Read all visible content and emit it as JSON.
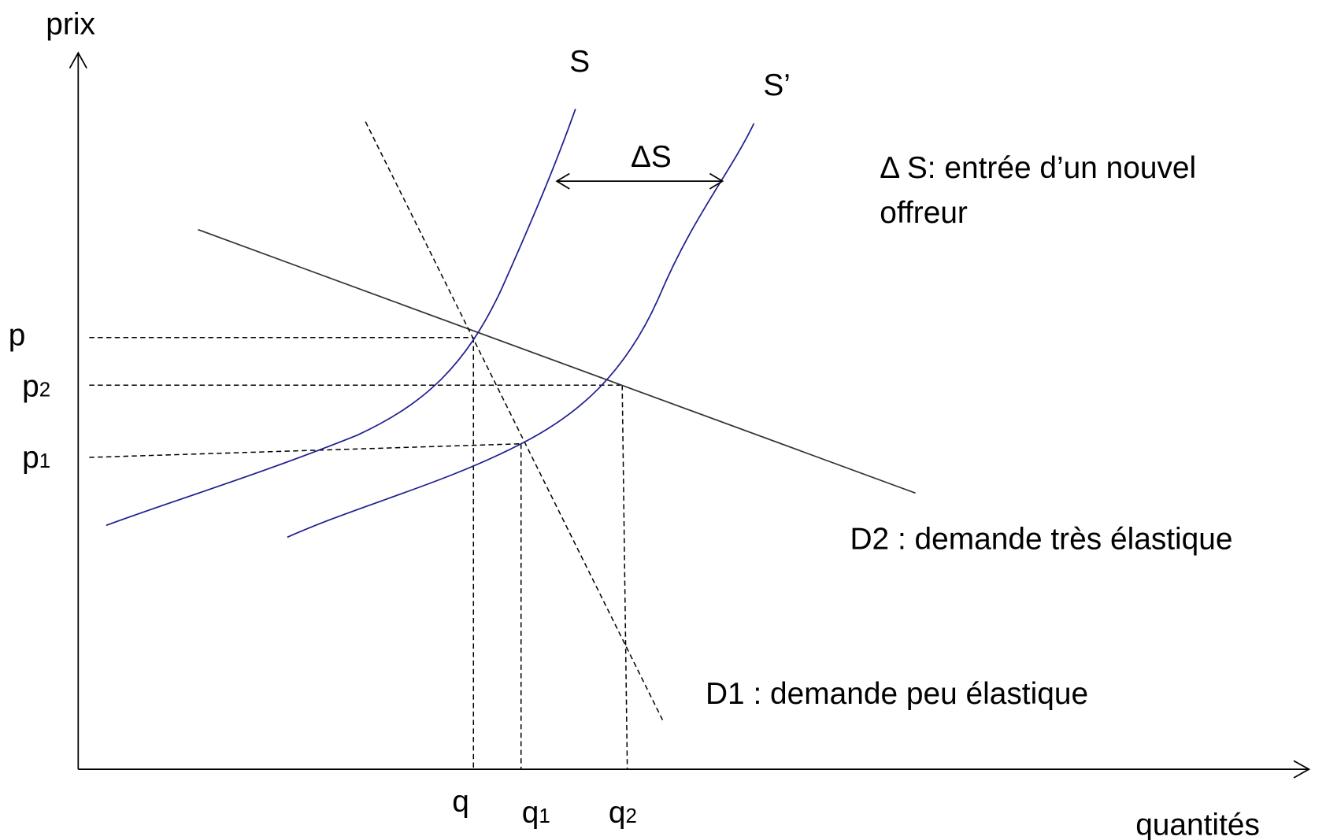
{
  "axes": {
    "y_label": "prix",
    "x_label": "quantités"
  },
  "curves": {
    "supply": "S",
    "supply_shifted": "S’",
    "shift": "ΔS",
    "demand_inelastic": "D1 : demande peu élastique",
    "demand_elastic": "D2 : demande très élastique"
  },
  "note": [
    "Δ S: entrée d’un nouvel",
    "offreur"
  ],
  "price_levels": [
    {
      "base": "p"
    },
    {
      "base": "p",
      "sub": "2"
    },
    {
      "base": "p",
      "sub": "1"
    }
  ],
  "quantity_levels": [
    {
      "base": "q"
    },
    {
      "base": "q",
      "sub": "1"
    },
    {
      "base": "q",
      "sub": "2"
    }
  ]
}
